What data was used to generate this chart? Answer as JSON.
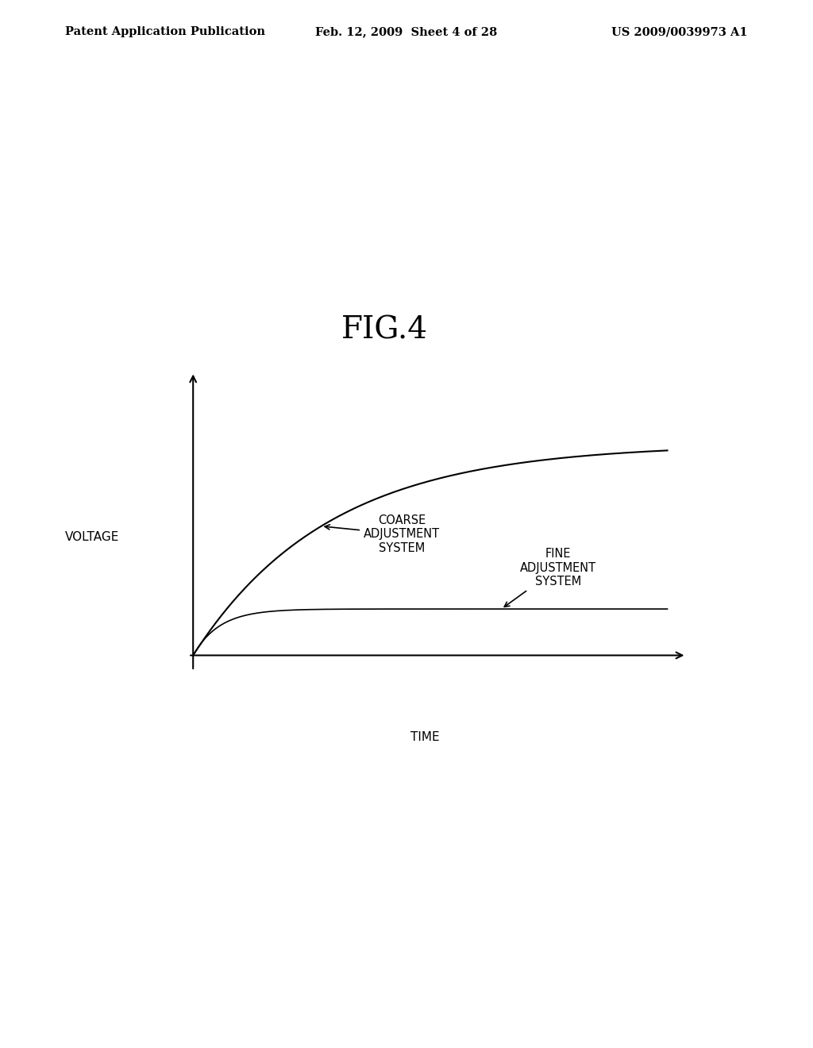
{
  "fig_label": "FIG.4",
  "header_left": "Patent Application Publication",
  "header_center": "Feb. 12, 2009  Sheet 4 of 28",
  "header_right": "US 2009/0039973 A1",
  "xlabel": "TIME",
  "ylabel": "VOLTAGE",
  "coarse_label": "COARSE\nADJUSTMENT\nSYSTEM",
  "fine_label": "FINE\nADJUSTMENT\nSYSTEM",
  "bg_color": "#ffffff",
  "line_color": "#000000",
  "axis_color": "#000000",
  "text_color": "#000000",
  "fig_label_fontsize": 28,
  "header_fontsize": 10.5,
  "axis_label_fontsize": 11,
  "annotation_fontsize": 10.5
}
